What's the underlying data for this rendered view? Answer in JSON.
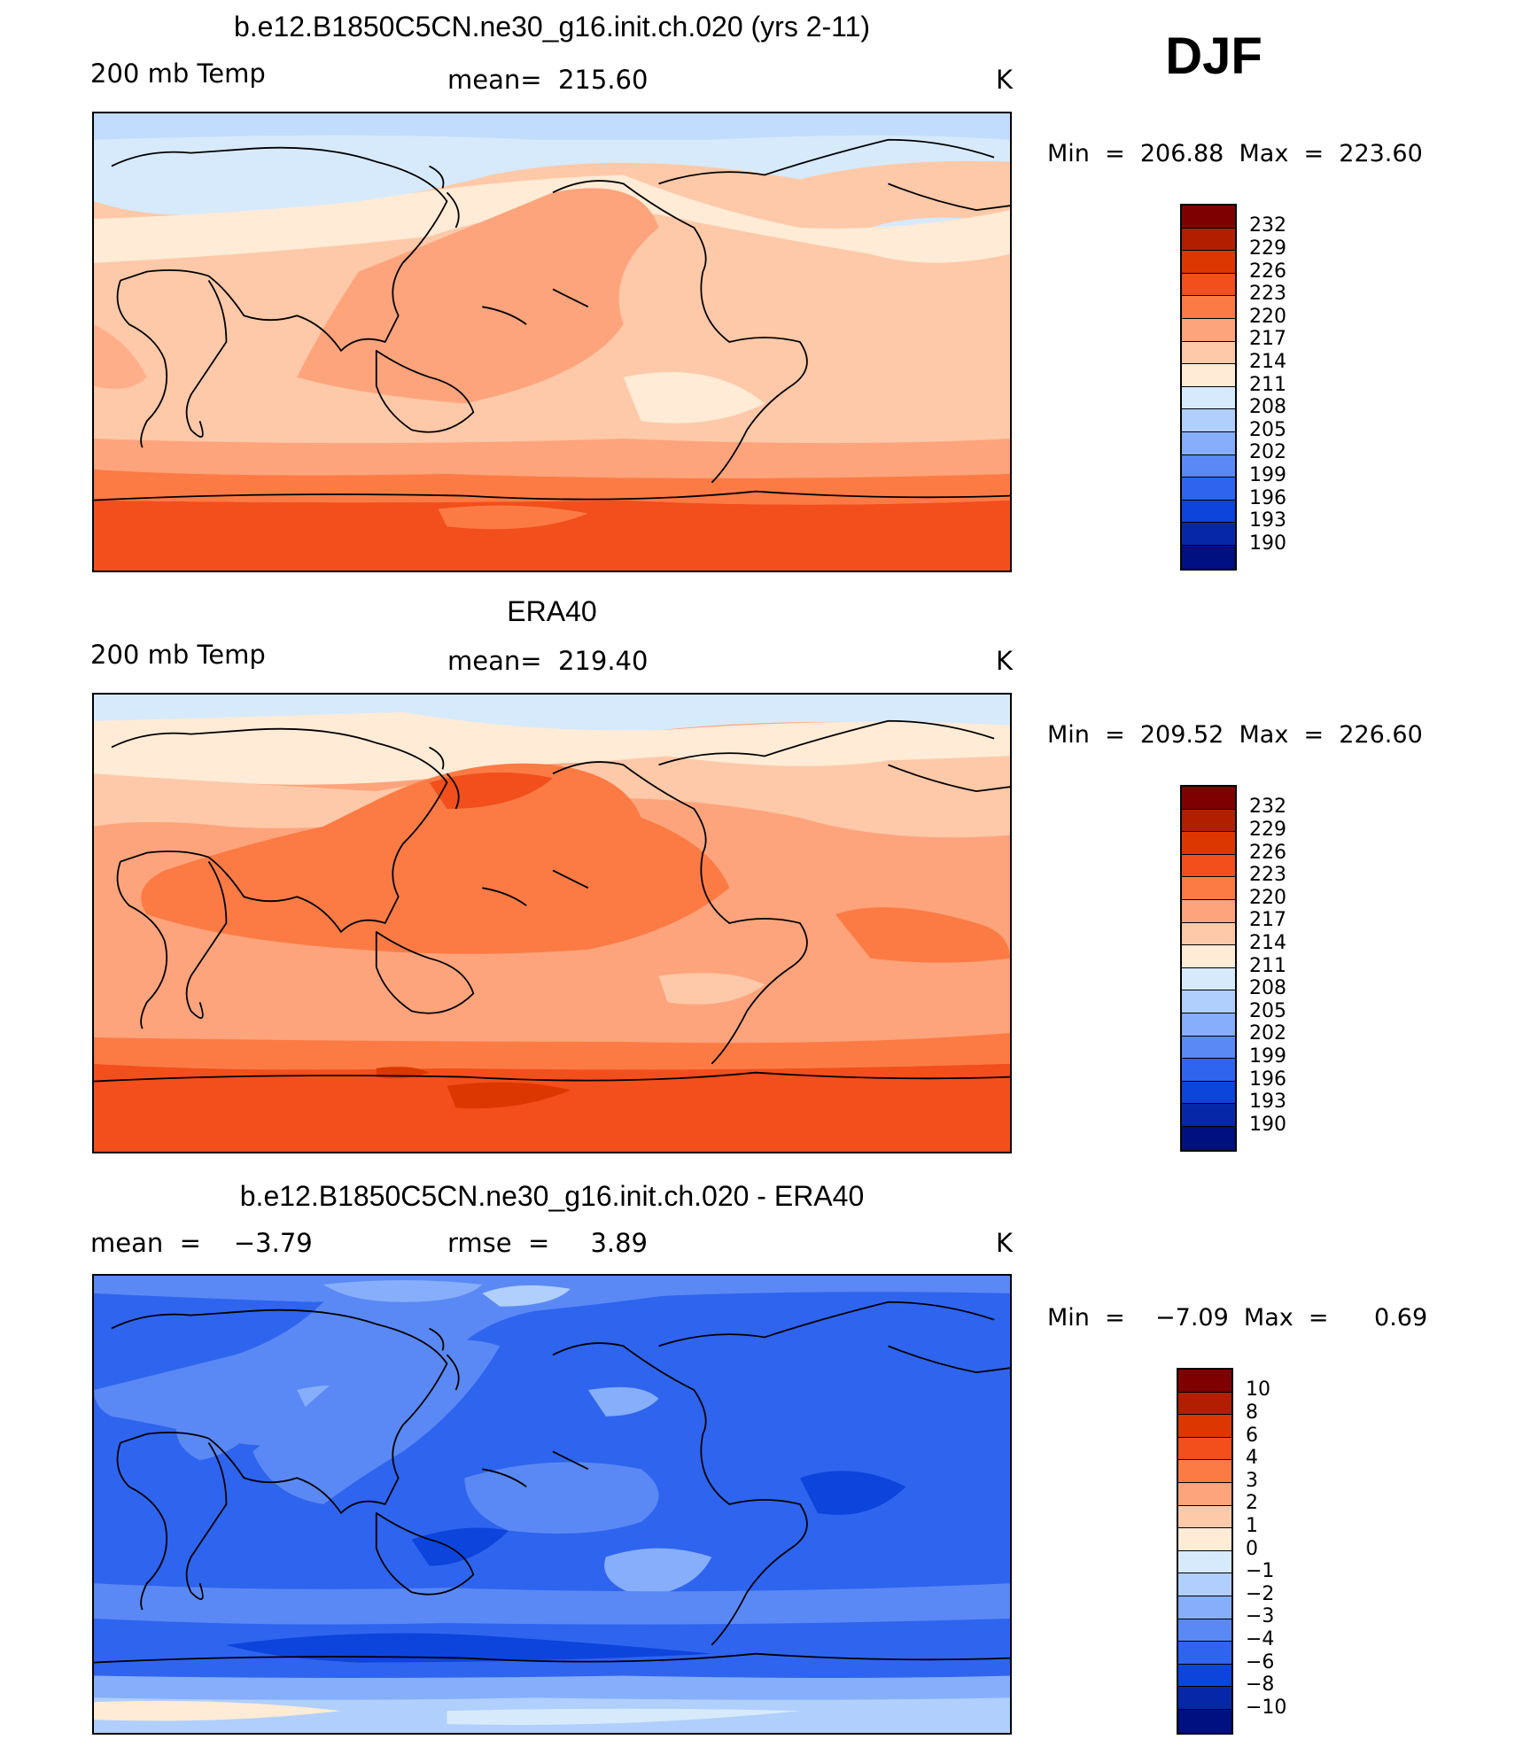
{
  "djf_label": "DJF",
  "panels": [
    {
      "title": "b.e12.B1850C5CN.ne30_g16.init.ch.020 (yrs 2-11)",
      "left_label": "200 mb Temp",
      "center_label": "mean=  215.60",
      "units": "K",
      "minmax": "Min  =  206.88  Max  =  223.60",
      "colorbar_labels": [
        "232",
        "229",
        "226",
        "223",
        "220",
        "217",
        "214",
        "211",
        "208",
        "205",
        "202",
        "199",
        "196",
        "193",
        "190"
      ]
    },
    {
      "title": "ERA40",
      "left_label": "200 mb Temp",
      "center_label": "mean=  219.40",
      "units": "K",
      "minmax": "Min  =  209.52  Max  =  226.60",
      "colorbar_labels": [
        "232",
        "229",
        "226",
        "223",
        "220",
        "217",
        "214",
        "211",
        "208",
        "205",
        "202",
        "199",
        "196",
        "193",
        "190"
      ]
    },
    {
      "title": "b.e12.B1850C5CN.ne30_g16.init.ch.020 - ERA40",
      "left_label": "mean  =    −3.79",
      "center_label": "rmse  =     3.89",
      "units": "K",
      "minmax": "Min  =    −7.09  Max  =      0.69",
      "colorbar_labels": [
        "10",
        "8",
        "6",
        "4",
        "3",
        "2",
        "1",
        "0",
        "−1",
        "−2",
        "−3",
        "−4",
        "−6",
        "−8",
        "−10"
      ]
    }
  ],
  "colors": {
    "scale": [
      "#7f0000",
      "#b21f00",
      "#dd3700",
      "#f24f1c",
      "#fc7b45",
      "#fea47c",
      "#fec9a8",
      "#ffebd6",
      "#d6eafc",
      "#b0cffc",
      "#86aefa",
      "#5a89f5",
      "#2f64ee",
      "#0d44dc",
      "#0628a8",
      "#001080"
    ]
  }
}
